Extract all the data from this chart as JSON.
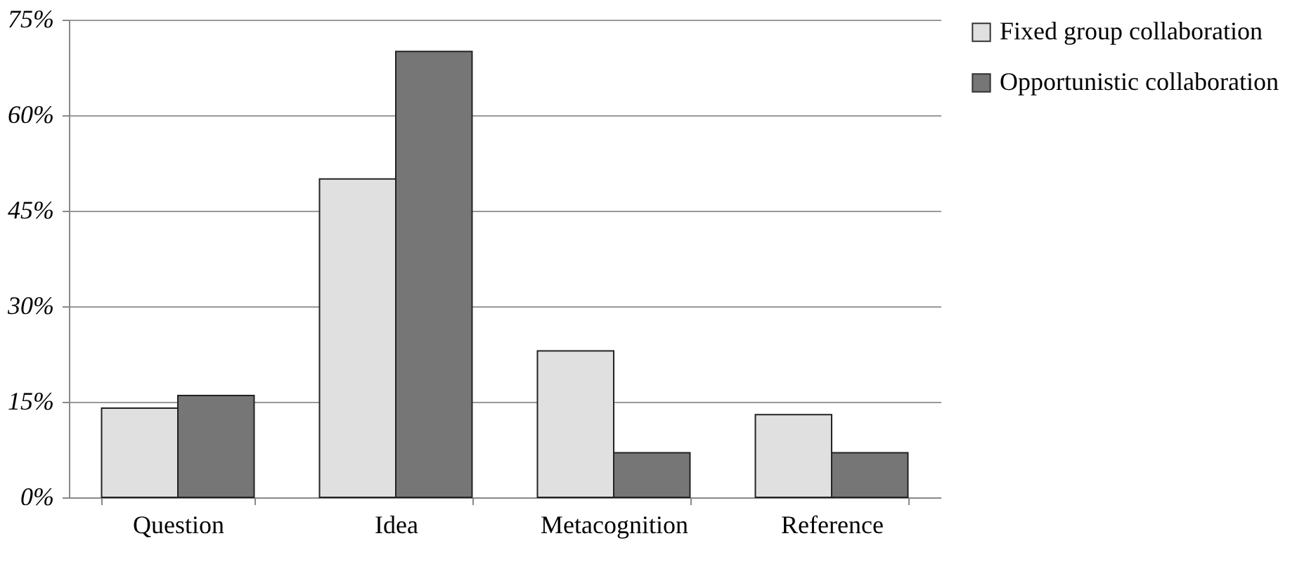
{
  "chart_data": {
    "type": "bar",
    "categories": [
      "Question",
      "Idea",
      "Metacognition",
      "Reference"
    ],
    "series": [
      {
        "name": "Fixed group collaboration",
        "color": "#e0e0e0",
        "values": [
          14,
          50,
          23,
          13
        ]
      },
      {
        "name": "Opportunistic collaboration",
        "color": "#767676",
        "values": [
          16,
          70,
          7,
          7
        ]
      }
    ],
    "ylim": [
      0,
      75
    ],
    "yticks": [
      {
        "value": 0,
        "label": "0%"
      },
      {
        "value": 15,
        "label": "15%"
      },
      {
        "value": 30,
        "label": "30%"
      },
      {
        "value": 45,
        "label": "45%"
      },
      {
        "value": 60,
        "label": "60%"
      },
      {
        "value": 75,
        "label": "75%"
      }
    ],
    "grid": "y",
    "legend": "right"
  }
}
